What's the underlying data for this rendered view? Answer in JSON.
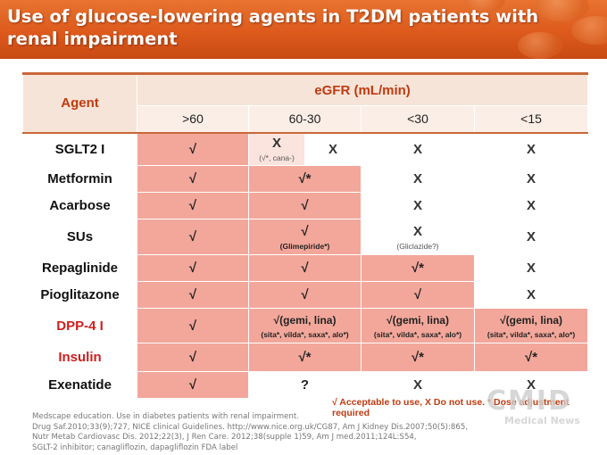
{
  "title": "Use of glucose-lowering agents in T2DM patients with renal impairment",
  "table": {
    "agent_header": "Agent",
    "egfr_header": "eGFR (mL/min)",
    "egfr_columns": [
      ">60",
      "60-30",
      "<30",
      "<15"
    ],
    "rows": [
      {
        "agent": "SGLT2 I",
        "c1": "√",
        "c2a": "X",
        "c2a_note": "(√*, cana-)",
        "c2b": "X",
        "c3": "X",
        "c4": "X"
      },
      {
        "agent": "Metformin",
        "c1": "√",
        "c2": "√*",
        "c3": "X",
        "c4": "X"
      },
      {
        "agent": "Acarbose",
        "c1": "√",
        "c2": "√",
        "c3": "X",
        "c4": "X"
      },
      {
        "agent": "SUs",
        "c1": "√",
        "c2": "√",
        "c2_note": "(Glimepiride*)",
        "c3": "X",
        "c3_note": "(Gliclazide?)",
        "c4": "X"
      },
      {
        "agent": "Repaglinide",
        "c1": "√",
        "c2": "√",
        "c3": "√*",
        "c4": "X"
      },
      {
        "agent": "Pioglitazone",
        "c1": "√",
        "c2": "√",
        "c3": "√",
        "c4": "X"
      },
      {
        "agent": "DPP-4 I",
        "c1": "√",
        "c2": "√(gemi, lina)",
        "c2_note": "(sita*, vilda*, saxa*, alo*)",
        "c3": "√(gemi, lina)",
        "c3_note": "(sita*, vilda*, saxa*, alo*)",
        "c4": "√(gemi, lina)",
        "c4_note": "(sita*, vilda*, saxa*, alo*)"
      },
      {
        "agent": "Insulin",
        "c1": "√",
        "c2": "√*",
        "c3": "√*",
        "c4": "√*"
      },
      {
        "agent": "Exenatide",
        "c1": "√",
        "c2": "?",
        "c3": "X",
        "c4": "X"
      }
    ]
  },
  "footnote": "√ Acceptable to use, X Do not use. * Dose adjustment required",
  "source_lines": [
    "Medscape education. Use in diabetes patients with renal impairment.",
    "Drug Saf.2010;33(9);727,  NICE clinical Guidelines. http://www.nice.org.uk/CG87,  Am J Kidney Dis.2007;50(5):865,",
    "Nutr Metab Cardiovasc Dis. 2012;22(3),  J Ren Care. 2012;38(supple 1)59,  Am J med.2011;124L:S54,",
    "SGLT-2 inhibitor; canagliflozin, dapagliflozin FDA label"
  ],
  "watermark": {
    "big": "CMID",
    "small": "Medical News"
  },
  "colors": {
    "banner": "#dd5a1c",
    "cell_pink": "#f2a79a",
    "cell_pale": "#fbe3de",
    "accent_red": "#d01e1e"
  }
}
